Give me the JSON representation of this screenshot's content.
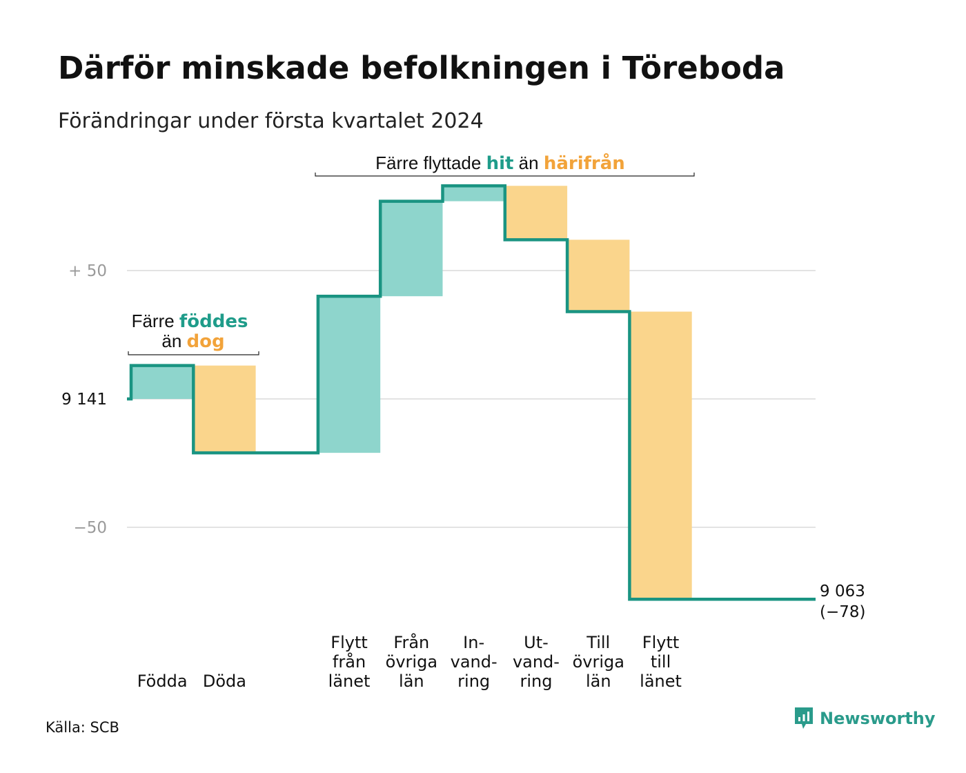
{
  "title": "Därför minskade befolkningen i Töreboda",
  "subtitle": "Förändringar under första kvartalet 2024",
  "source": "Källa: SCB",
  "brand": {
    "name": "Newsworthy",
    "icon": "newsworthy-logo-icon"
  },
  "colors": {
    "increase": "#8ed5cc",
    "decrease": "#fad58c",
    "line": "#1a9482",
    "teal_text": "#1f9c8a",
    "orange_text": "#f2a33a"
  },
  "annotations": {
    "births": {
      "prefix": "Färre",
      "teal": "föddes",
      "line2_prefix": "än",
      "orange": "dog"
    },
    "moves": {
      "prefix": "Färre flyttade",
      "teal": "hit",
      "middle": "än",
      "orange": "härifrån"
    }
  },
  "chart_data": {
    "type": "waterfall",
    "start_value": 9141,
    "start_label": "9  141",
    "end_value": 9063,
    "end_label": "9 063",
    "end_change_label": "(−78)",
    "y_ticks": [
      {
        "value": 50,
        "label": "+  50"
      },
      {
        "value": 0,
        "label": "9  141"
      },
      {
        "value": -50,
        "label": "−50"
      }
    ],
    "ylim": [
      -75,
      70
    ],
    "steps": [
      {
        "label": [
          "Födda"
        ],
        "change": 13,
        "type": "increase"
      },
      {
        "label": [
          "Döda"
        ],
        "change": -34,
        "type": "decrease"
      },
      {
        "label": [],
        "change": 0,
        "type": "gap"
      },
      {
        "label": [
          "Flytt",
          "från",
          "länet"
        ],
        "change": 61,
        "type": "increase"
      },
      {
        "label": [
          "Från",
          "övriga",
          "län"
        ],
        "change": 37,
        "type": "increase"
      },
      {
        "label": [
          "In-",
          "vand-",
          "ring"
        ],
        "change": 6,
        "type": "increase"
      },
      {
        "label": [
          "Ut-",
          "vand-",
          "ring"
        ],
        "change": -21,
        "type": "decrease"
      },
      {
        "label": [
          "Till",
          "övriga",
          "län"
        ],
        "change": -28,
        "type": "decrease"
      },
      {
        "label": [
          "Flytt",
          "till",
          "länet"
        ],
        "change": -112,
        "type": "decrease"
      }
    ]
  }
}
